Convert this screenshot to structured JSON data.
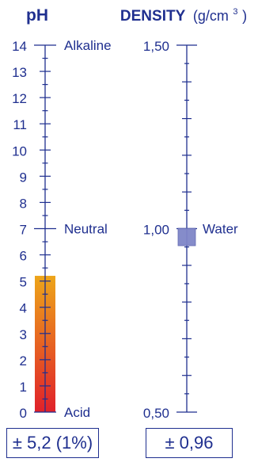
{
  "chart_data": [
    {
      "type": "bar",
      "title": "pH",
      "axis": {
        "min": 0,
        "max": 14,
        "major_step": 1,
        "minor_step": 0.5
      },
      "tick_labels": [
        "0",
        "1",
        "2",
        "3",
        "4",
        "5",
        "6",
        "7",
        "8",
        "9",
        "10",
        "11",
        "12",
        "13",
        "14"
      ],
      "annotations": [
        {
          "value": 14,
          "label": "Alkaline"
        },
        {
          "value": 7,
          "label": "Neutral"
        },
        {
          "value": 0,
          "label": "Acid"
        }
      ],
      "values": [
        5.2
      ],
      "bar_gradient": {
        "bottom": "#e0212a",
        "top": "#eda51a"
      },
      "result_label": "± 5,2 (1%)"
    },
    {
      "type": "scatter",
      "title": "DENSITY",
      "unit": "(g/cm",
      "unit_sup": "3",
      "unit_close": ")",
      "axis": {
        "min": 0.5,
        "max": 1.5,
        "major_step": 0.1,
        "minor_step": 0.05
      },
      "tick_labels": [
        "0,50",
        "1,00",
        "1,50"
      ],
      "tick_label_values": [
        0.5,
        1.0,
        1.5
      ],
      "annotations": [
        {
          "value": 1.0,
          "label": "Water"
        }
      ],
      "values": [
        0.96
      ],
      "marker_color": "#7f86c8",
      "result_label": "± 0,96"
    }
  ],
  "colors": {
    "ink": "#1f2f8f",
    "marker": "#7f86c8"
  }
}
